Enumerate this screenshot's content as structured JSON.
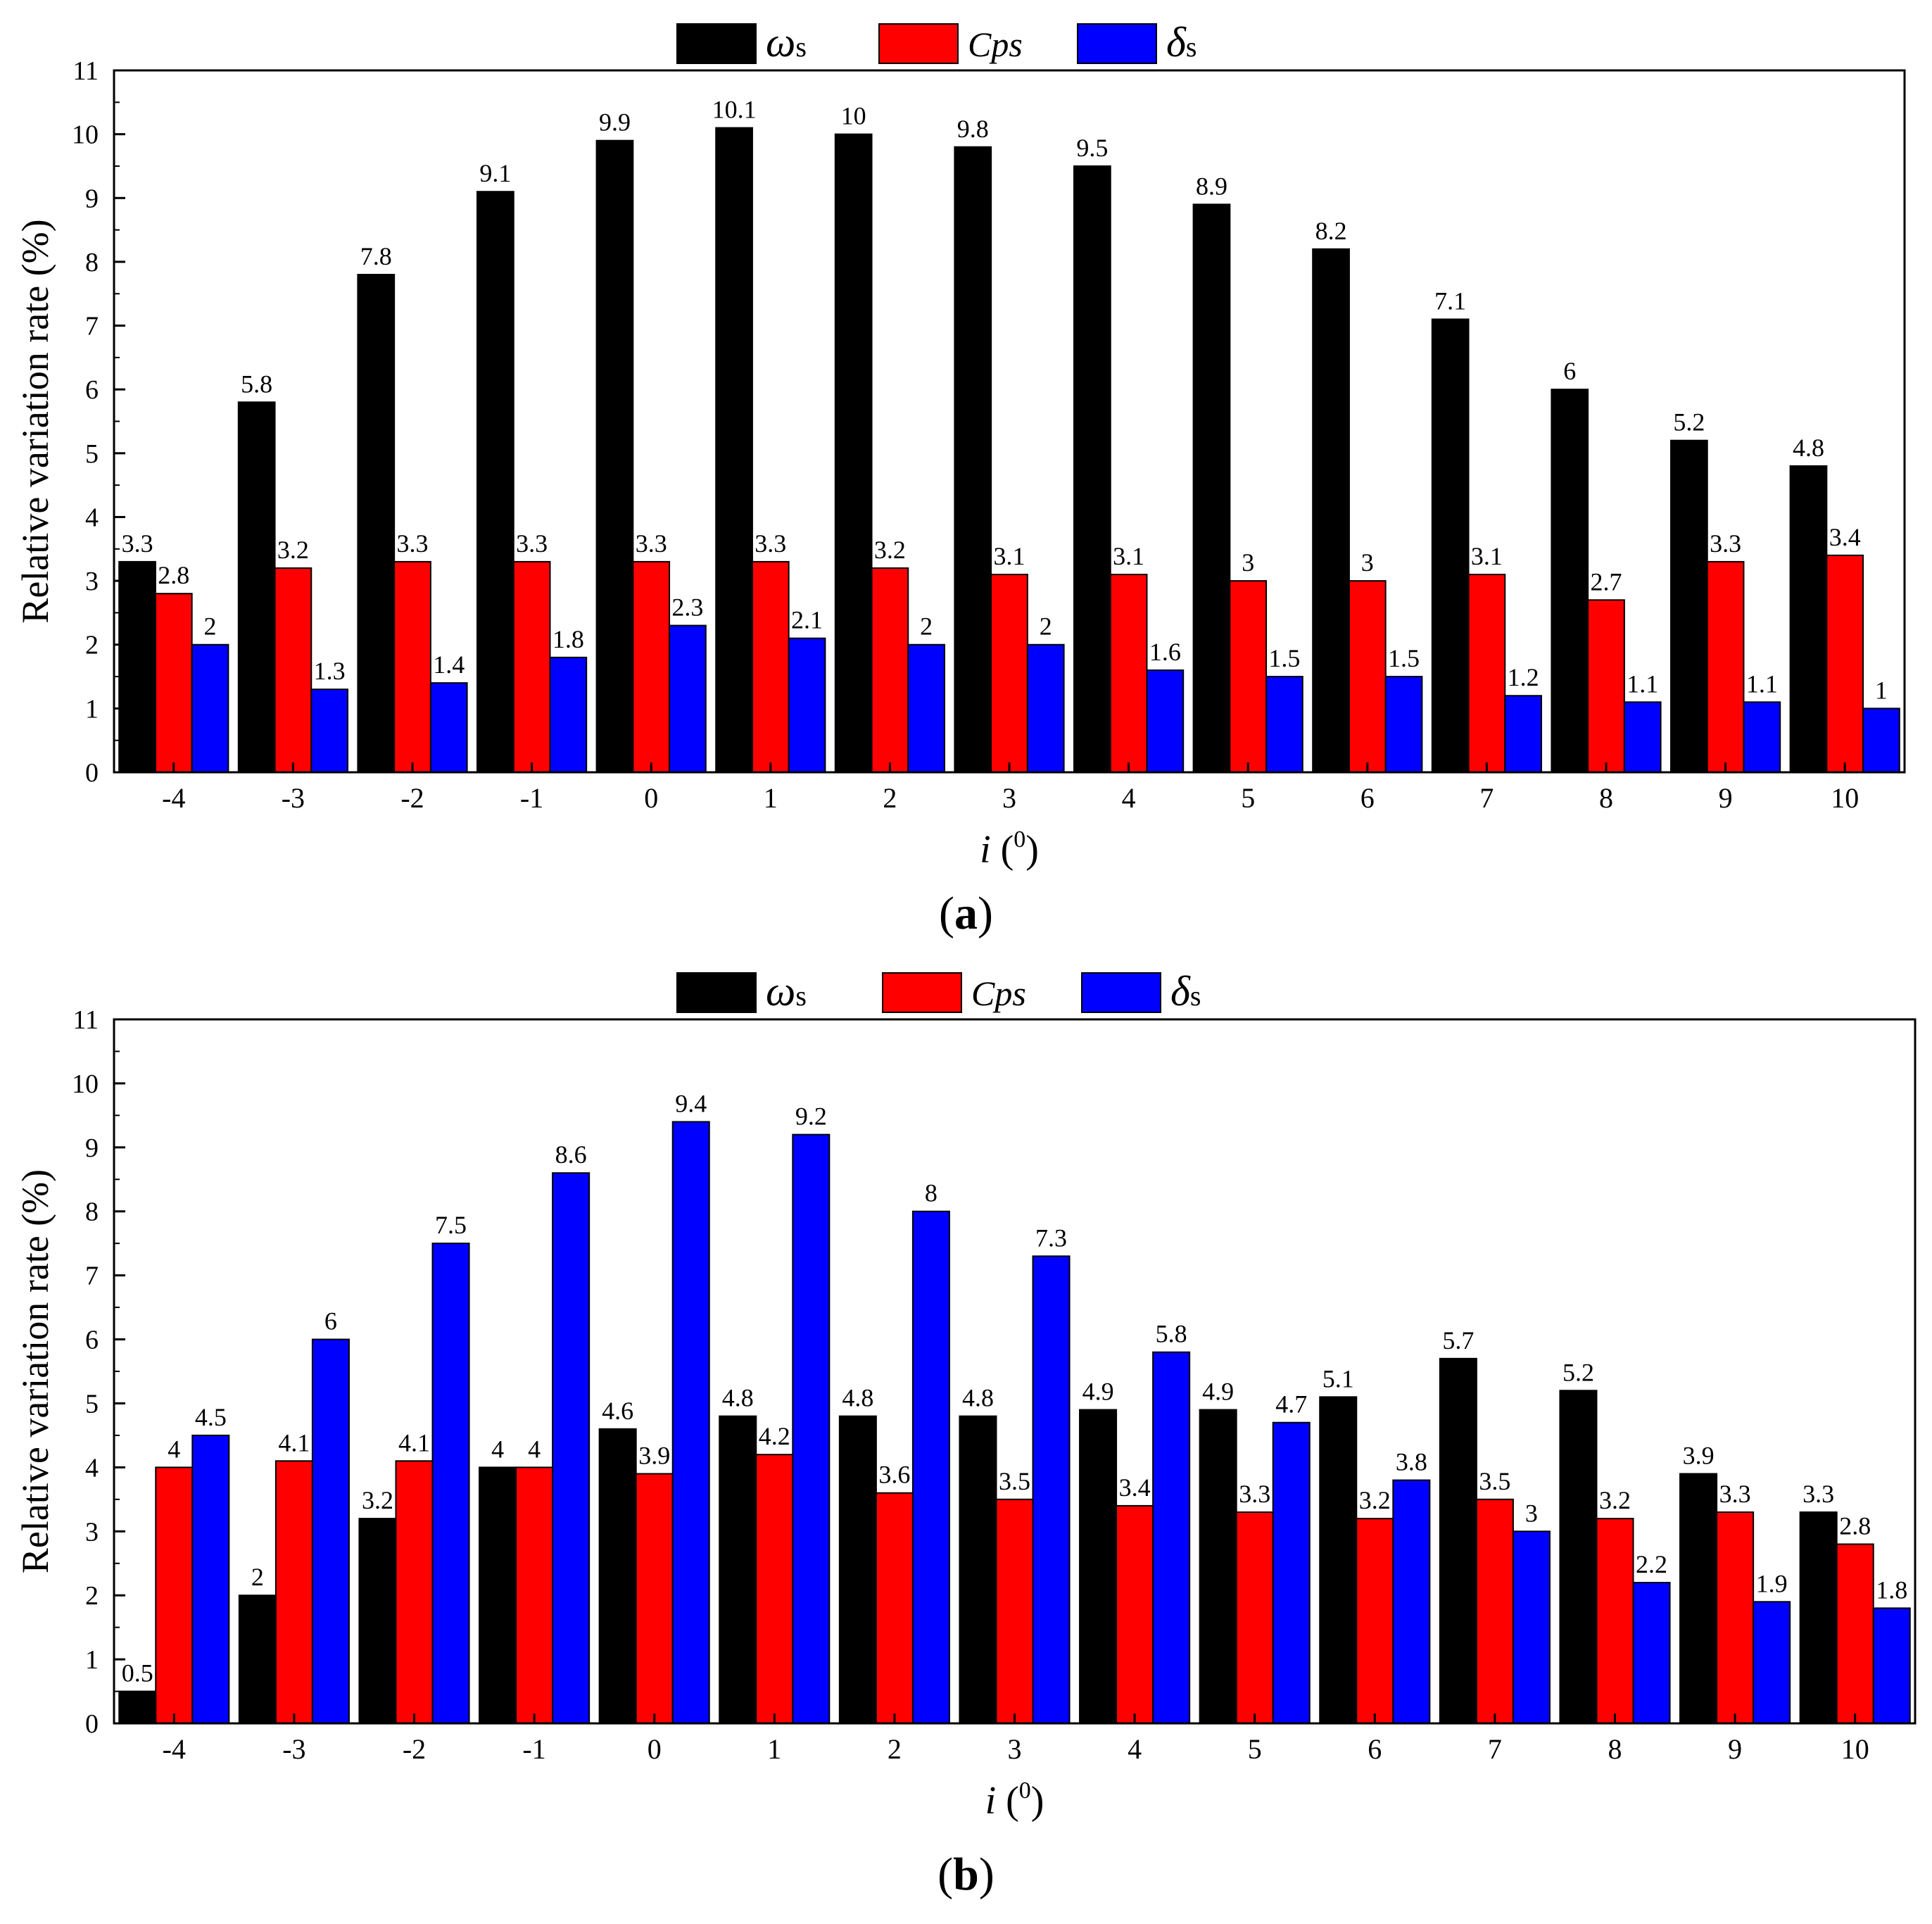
{
  "chart_data": [
    {
      "type": "bar",
      "title": "",
      "xlabel_main": "i",
      "xlabel_unit": "0",
      "ylabel": "Relative variation rate (%)",
      "ylim": [
        0,
        11
      ],
      "yticks": [
        0,
        1,
        2,
        3,
        4,
        5,
        6,
        7,
        8,
        9,
        10,
        11
      ],
      "categories": [
        "-4",
        "-3",
        "-2",
        "-1",
        "0",
        "1",
        "2",
        "3",
        "4",
        "5",
        "6",
        "7",
        "8",
        "9",
        "10"
      ],
      "legend": [
        {
          "symbol": "ω",
          "sub": "s",
          "color": "#000000"
        },
        {
          "symbol": "Cps",
          "sub": "",
          "color": "#ff0000"
        },
        {
          "symbol": "δ",
          "sub": "s",
          "color": "#0000ff"
        }
      ],
      "series": [
        {
          "name": "ωs",
          "color": "#000000",
          "values": [
            3.3,
            5.8,
            7.8,
            9.1,
            9.9,
            10.1,
            10,
            9.8,
            9.5,
            8.9,
            8.2,
            7.1,
            6,
            5.2,
            4.8
          ]
        },
        {
          "name": "Cps",
          "color": "#ff0000",
          "values": [
            2.8,
            3.2,
            3.3,
            3.3,
            3.3,
            3.3,
            3.2,
            3.1,
            3.1,
            3,
            3,
            3.1,
            2.7,
            3.3,
            3.4
          ]
        },
        {
          "name": "δs",
          "color": "#0000ff",
          "values": [
            2,
            1.3,
            1.4,
            1.8,
            2.3,
            2.1,
            2,
            2,
            1.6,
            1.5,
            1.5,
            1.2,
            1.1,
            1.1,
            1
          ]
        }
      ],
      "caption": "a"
    },
    {
      "type": "bar",
      "title": "",
      "xlabel_main": "i",
      "xlabel_unit": "0",
      "ylabel": "Relative variation rate (%)",
      "ylim": [
        0,
        11
      ],
      "yticks": [
        0,
        1,
        2,
        3,
        4,
        5,
        6,
        7,
        8,
        9,
        10,
        11
      ],
      "categories": [
        "-4",
        "-3",
        "-2",
        "-1",
        "0",
        "1",
        "2",
        "3",
        "4",
        "5",
        "6",
        "7",
        "8",
        "9",
        "10"
      ],
      "legend": [
        {
          "symbol": "ω",
          "sub": "s",
          "color": "#000000"
        },
        {
          "symbol": "Cps",
          "sub": "",
          "color": "#ff0000"
        },
        {
          "symbol": "δ",
          "sub": "s",
          "color": "#0000ff"
        }
      ],
      "series": [
        {
          "name": "ωs",
          "color": "#000000",
          "values": [
            0.5,
            2,
            3.2,
            4,
            4.6,
            4.8,
            4.8,
            4.8,
            4.9,
            4.9,
            5.1,
            5.7,
            5.2,
            3.9,
            3.3
          ]
        },
        {
          "name": "Cps",
          "color": "#ff0000",
          "values": [
            4,
            4.1,
            4.1,
            4,
            3.9,
            4.2,
            3.6,
            3.5,
            3.4,
            3.3,
            3.2,
            3.5,
            3.2,
            3.3,
            2.8
          ]
        },
        {
          "name": "δs",
          "color": "#0000ff",
          "values": [
            4.5,
            6,
            7.5,
            8.6,
            9.4,
            9.2,
            8,
            7.3,
            5.8,
            4.7,
            3.8,
            3,
            2.2,
            1.9,
            1.8
          ]
        }
      ],
      "caption": "b"
    }
  ]
}
